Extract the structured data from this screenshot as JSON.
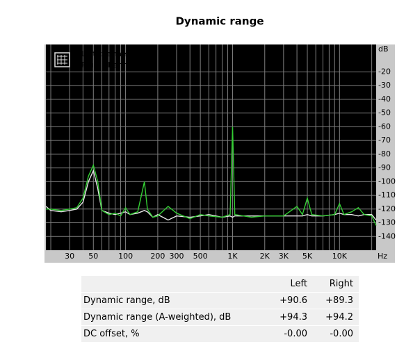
{
  "chart_data": {
    "type": "line",
    "title": "Dynamic range",
    "x_unit": "Hz",
    "y_unit": "dB",
    "xlog": true,
    "grid": true,
    "legend": "top-left",
    "xlim": [
      18,
      22000
    ],
    "ylim": [
      -150,
      0
    ],
    "xticks": [
      30,
      50,
      100,
      200,
      300,
      500,
      {
        "value": 1000,
        "label": "1K"
      },
      {
        "value": 2000,
        "label": "2K"
      },
      {
        "value": 3000,
        "label": "3K"
      },
      {
        "value": 5000,
        "label": "5K"
      },
      {
        "value": 10000,
        "label": "10K"
      }
    ],
    "xgrid": [
      20,
      30,
      40,
      50,
      60,
      70,
      80,
      90,
      100,
      200,
      300,
      400,
      500,
      600,
      700,
      800,
      900,
      1000,
      2000,
      3000,
      4000,
      5000,
      6000,
      7000,
      8000,
      9000,
      10000,
      20000
    ],
    "yticks": [
      -20,
      -30,
      -40,
      -50,
      -60,
      -70,
      -80,
      -90,
      -100,
      -110,
      -120,
      -130,
      -140
    ],
    "x": [
      18,
      20,
      25,
      30,
      35,
      40,
      45,
      50,
      55,
      60,
      70,
      80,
      90,
      100,
      110,
      130,
      150,
      160,
      180,
      200,
      250,
      300,
      400,
      500,
      600,
      800,
      950,
      1000,
      1050,
      1500,
      2000,
      3000,
      4000,
      4500,
      5000,
      5500,
      7000,
      9000,
      10000,
      11000,
      13000,
      15000,
      17000,
      20000,
      22000
    ],
    "series": [
      {
        "name": "Left channel",
        "color": "#e6e6e6",
        "values": [
          -118,
          -121,
          -122,
          -121,
          -120,
          -115,
          -100,
          -92,
          -105,
          -121,
          -123,
          -124,
          -123,
          -122,
          -124,
          -123,
          -121,
          -122,
          -126,
          -124,
          -128,
          -125,
          -126,
          -125,
          -124,
          -126,
          -125,
          -126,
          -125,
          -125,
          -125,
          -125,
          -125,
          -125,
          -124,
          -125,
          -125,
          -124,
          -123,
          -124,
          -124,
          -125,
          -124,
          -124,
          -128
        ]
      },
      {
        "name": "Right channel",
        "color": "#33cc33",
        "values": [
          -120,
          -120,
          -121,
          -120,
          -119,
          -112,
          -96,
          -88,
          -100,
          -121,
          -124,
          -123,
          -125,
          -119,
          -124,
          -122,
          -100,
          -120,
          -126,
          -125,
          -118,
          -123,
          -127,
          -124,
          -125,
          -126,
          -124,
          -60,
          -124,
          -126,
          -125,
          -125,
          -118,
          -124,
          -112,
          -124,
          -125,
          -124,
          -116,
          -124,
          -122,
          -119,
          -124,
          -125,
          -132
        ]
      }
    ]
  },
  "table": {
    "columns": [
      "Left",
      "Right"
    ],
    "rows": [
      [
        "Dynamic range, dB",
        "+90.6",
        "+89.3"
      ],
      [
        "Dynamic range (A-weighted), dB",
        "+94.3",
        "+94.2"
      ],
      [
        "DC offset, %",
        "-0.00",
        "-0.00"
      ]
    ]
  }
}
